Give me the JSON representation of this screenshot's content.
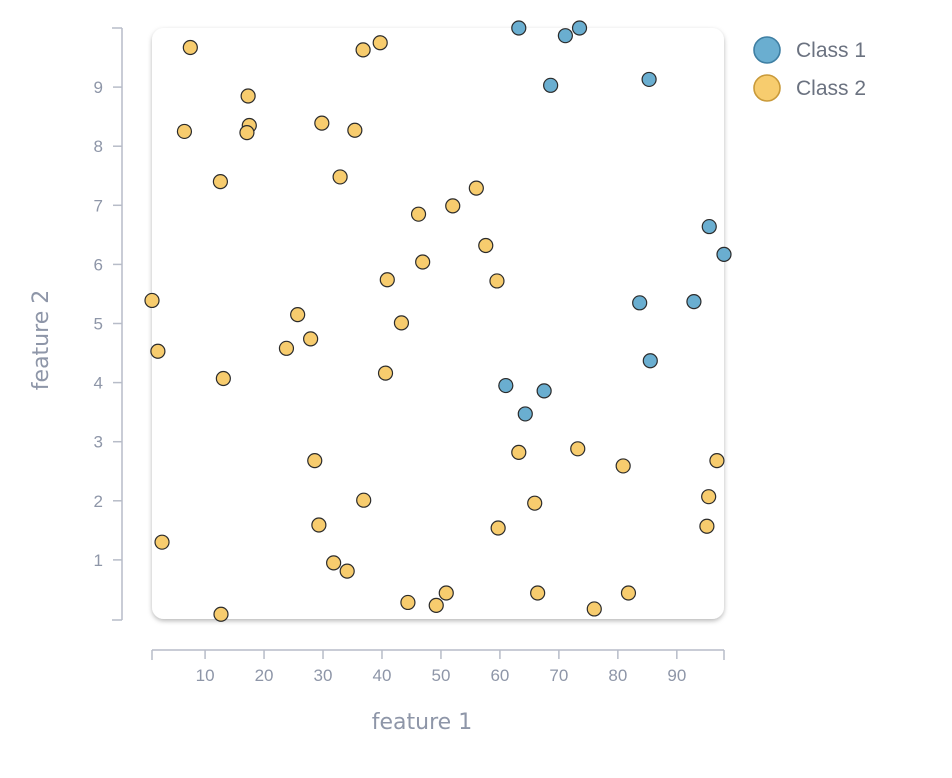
{
  "chart_data": {
    "type": "scatter",
    "xlabel": "feature 1",
    "ylabel": "feature 2",
    "xlim": [
      1,
      98
    ],
    "ylim": [
      0,
      10
    ],
    "xticks": [
      10,
      20,
      30,
      40,
      50,
      60,
      70,
      80,
      90
    ],
    "yticks": [
      1,
      2,
      3,
      4,
      5,
      6,
      7,
      8,
      9
    ],
    "grid": false,
    "legend_position": "top-right, outside plot",
    "series": [
      {
        "name": "Class 1",
        "color": "#6aaed0",
        "points": [
          [
            63.2,
            10.0
          ],
          [
            71.1,
            9.87
          ],
          [
            73.5,
            10.0
          ],
          [
            68.6,
            9.03
          ],
          [
            85.3,
            9.13
          ],
          [
            95.5,
            6.64
          ],
          [
            98.0,
            6.17
          ],
          [
            83.7,
            5.35
          ],
          [
            92.9,
            5.37
          ],
          [
            85.5,
            4.37
          ],
          [
            61.0,
            3.95
          ],
          [
            64.3,
            3.47
          ],
          [
            67.5,
            3.86
          ]
        ]
      },
      {
        "name": "Class 2",
        "color": "#f7cc6e",
        "points": [
          [
            7.5,
            9.67
          ],
          [
            36.8,
            9.63
          ],
          [
            39.7,
            9.75
          ],
          [
            17.3,
            8.85
          ],
          [
            6.5,
            8.25
          ],
          [
            17.5,
            8.35
          ],
          [
            17.1,
            8.23
          ],
          [
            29.8,
            8.39
          ],
          [
            35.4,
            8.27
          ],
          [
            12.6,
            7.4
          ],
          [
            32.9,
            7.48
          ],
          [
            56.0,
            7.29
          ],
          [
            52.0,
            6.99
          ],
          [
            46.2,
            6.85
          ],
          [
            57.6,
            6.32
          ],
          [
            46.9,
            6.04
          ],
          [
            40.9,
            5.74
          ],
          [
            59.5,
            5.72
          ],
          [
            1.0,
            5.39
          ],
          [
            25.7,
            5.15
          ],
          [
            43.3,
            5.01
          ],
          [
            27.9,
            4.74
          ],
          [
            23.8,
            4.58
          ],
          [
            2.0,
            4.53
          ],
          [
            40.6,
            4.16
          ],
          [
            13.1,
            4.07
          ],
          [
            63.2,
            2.82
          ],
          [
            73.2,
            2.88
          ],
          [
            80.9,
            2.59
          ],
          [
            96.8,
            2.68
          ],
          [
            28.6,
            2.68
          ],
          [
            36.9,
            2.01
          ],
          [
            65.9,
            1.96
          ],
          [
            95.4,
            2.07
          ],
          [
            29.3,
            1.59
          ],
          [
            59.7,
            1.54
          ],
          [
            95.1,
            1.57
          ],
          [
            2.7,
            1.3
          ],
          [
            31.8,
            0.95
          ],
          [
            34.1,
            0.81
          ],
          [
            44.4,
            0.28
          ],
          [
            49.2,
            0.23
          ],
          [
            50.9,
            0.44
          ],
          [
            66.4,
            0.44
          ],
          [
            81.8,
            0.44
          ],
          [
            76.0,
            0.17
          ],
          [
            12.7,
            0.08
          ]
        ]
      }
    ]
  }
}
